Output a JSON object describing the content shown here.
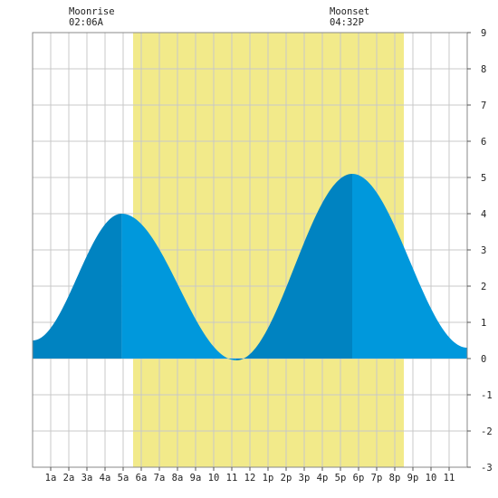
{
  "header": {
    "moonrise_label": "Moonrise",
    "moonrise_time": "02:06A",
    "moonset_label": "Moonset",
    "moonset_time": "04:32P"
  },
  "colors": {
    "daylight": "#f2ea8a",
    "tide_rising": "#0083c1",
    "tide_falling": "#0098dc",
    "grid": "#c8c8c8",
    "frame": "#888888"
  },
  "chart_data": {
    "type": "area",
    "title": "",
    "xlabel": "",
    "ylabel": "",
    "xlim": [
      0,
      24
    ],
    "ylim": [
      -3,
      9
    ],
    "y_ticks": [
      -3,
      -2,
      -1,
      0,
      1,
      2,
      3,
      4,
      5,
      6,
      7,
      8,
      9
    ],
    "y_tick_labels": [
      "-3",
      "-2",
      "-1",
      "0",
      "1",
      "2",
      "3",
      "4",
      "5",
      "6",
      "7",
      "8",
      "9"
    ],
    "x_ticks": [
      1,
      2,
      3,
      4,
      5,
      6,
      7,
      8,
      9,
      10,
      11,
      12,
      13,
      14,
      15,
      16,
      17,
      18,
      19,
      20,
      21,
      22,
      23
    ],
    "x_tick_labels": [
      "1a",
      "2a",
      "3a",
      "4a",
      "5a",
      "6a",
      "7a",
      "8a",
      "9a",
      "10",
      "11",
      "12",
      "1p",
      "2p",
      "3p",
      "4p",
      "5p",
      "6p",
      "7p",
      "8p",
      "9p",
      "10",
      "11"
    ],
    "daylight": {
      "start_hour": 5.55,
      "end_hour": 20.5
    },
    "moonrise_hour": 2.1,
    "moonset_hour": 16.53,
    "series": [
      {
        "values_note_free": true,
        "x": [
          0,
          4.92,
          11.25,
          17.65,
          24
        ],
        "y": [
          0.5,
          4.0,
          -0.05,
          5.1,
          0.3
        ]
      }
    ],
    "grid": true
  }
}
